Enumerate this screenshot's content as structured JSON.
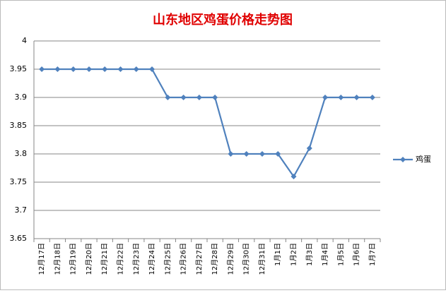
{
  "chart_data": {
    "type": "line",
    "title": "山东地区鸡蛋价格走势图",
    "categories": [
      "12月17日",
      "12月18日",
      "12月19日",
      "12月20日",
      "12月21日",
      "12月22日",
      "12月23日",
      "12月24日",
      "12月25日",
      "12月26日",
      "12月27日",
      "12月28日",
      "12月29日",
      "12月30日",
      "12月31日",
      "1月1日",
      "1月2日",
      "1月3日",
      "1月4日",
      "1月5日",
      "1月6日",
      "1月7日"
    ],
    "series": [
      {
        "name": "鸡蛋",
        "color": "#4f81bd",
        "values": [
          3.95,
          3.95,
          3.95,
          3.95,
          3.95,
          3.95,
          3.95,
          3.95,
          3.9,
          3.9,
          3.9,
          3.9,
          3.8,
          3.8,
          3.8,
          3.8,
          3.76,
          3.81,
          3.9,
          3.9,
          3.9,
          3.9
        ]
      }
    ],
    "ylim": [
      3.65,
      4
    ],
    "yticks": [
      3.65,
      3.7,
      3.75,
      3.8,
      3.85,
      3.9,
      3.95,
      4
    ],
    "grid": true,
    "legend": "right"
  }
}
